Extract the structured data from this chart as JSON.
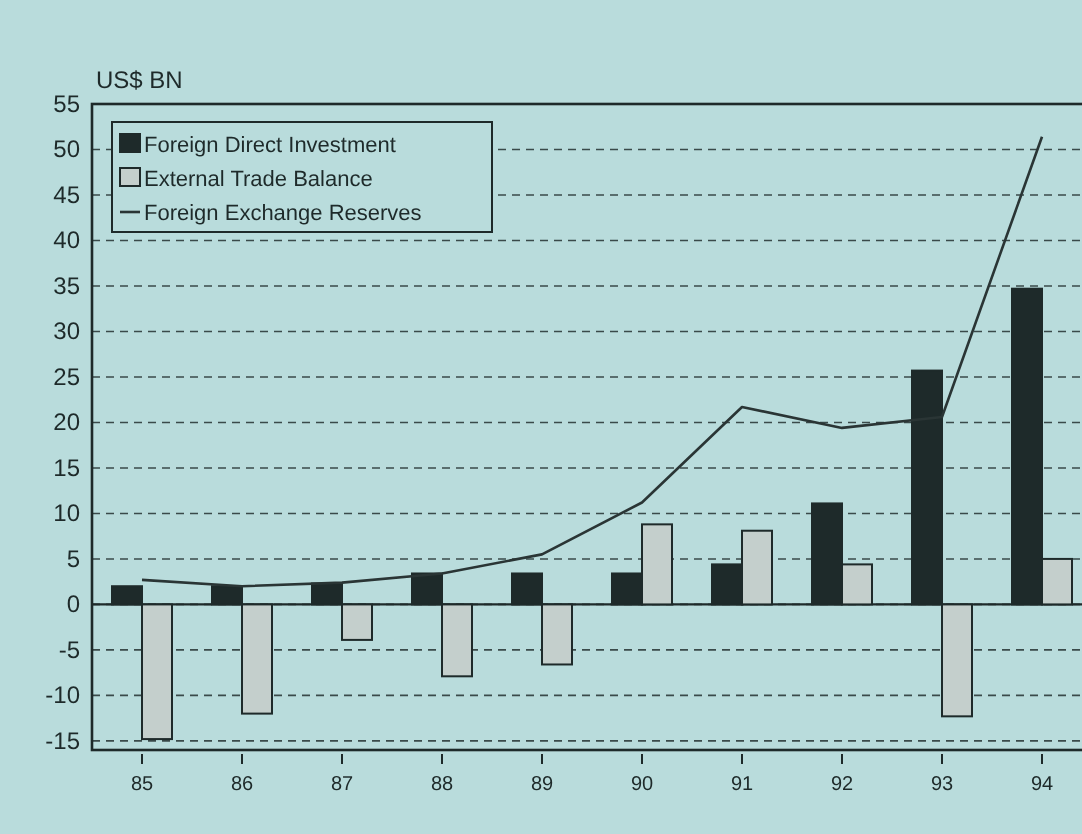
{
  "chart_data": {
    "type": "bar",
    "ylabel": "US$ BN",
    "categories": [
      "85",
      "86",
      "87",
      "88",
      "89",
      "90",
      "91",
      "92",
      "93",
      "94"
    ],
    "series": [
      {
        "name": "Foreign Direct Investment",
        "color": "#1e2a2a",
        "values": [
          2.0,
          2.0,
          2.3,
          3.4,
          3.4,
          3.4,
          4.4,
          11.1,
          25.7,
          34.7
        ]
      },
      {
        "name": "External Trade Balance",
        "color": "#c4cfcc",
        "values": [
          -14.8,
          -12.0,
          -3.9,
          -7.9,
          -6.6,
          8.8,
          8.1,
          4.4,
          -12.3,
          5.0
        ]
      },
      {
        "name": "Foreign Exchange Reserves",
        "type": "line",
        "color": "#2a3535",
        "values": [
          2.7,
          2.0,
          2.4,
          3.4,
          5.5,
          11.2,
          21.7,
          19.4,
          20.6,
          51.4
        ]
      }
    ],
    "ylim": [
      -16,
      55
    ],
    "yticks": [
      -15,
      -10,
      -5,
      0,
      5,
      10,
      15,
      20,
      25,
      30,
      35,
      40,
      45,
      50,
      55
    ],
    "grid": "y",
    "legend": "top left",
    "line_style": "solid"
  }
}
